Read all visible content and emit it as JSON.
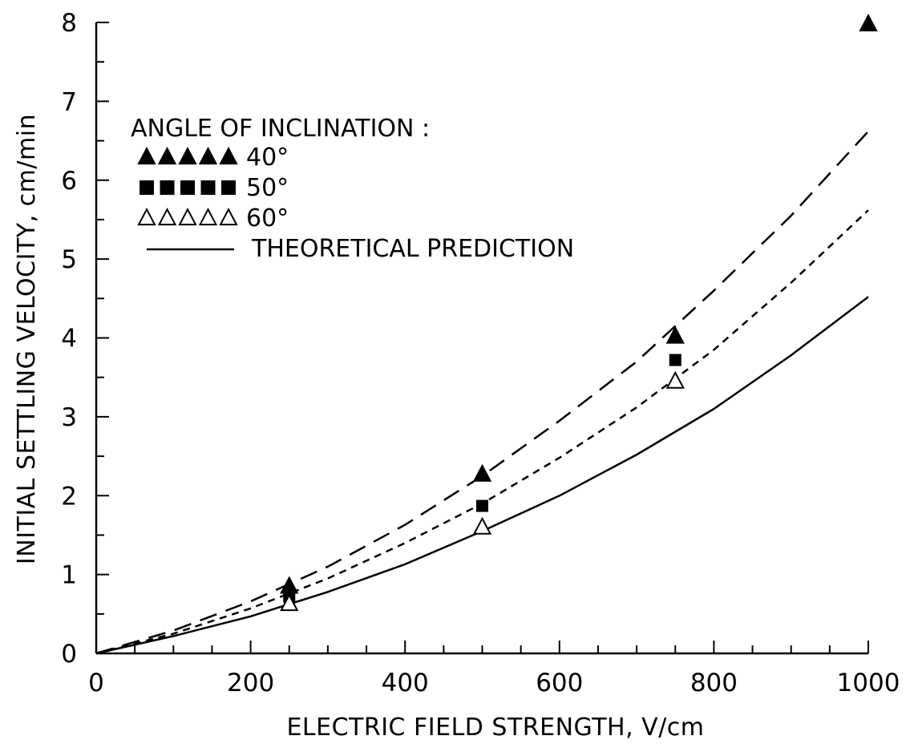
{
  "chart_data": {
    "type": "scatter",
    "xlabel": "ELECTRIC FIELD STRENGTH, V/cm",
    "ylabel": "INITIAL SETTLING VELOCITY, cm/min",
    "xlim": [
      0,
      1000
    ],
    "ylim": [
      0,
      8
    ],
    "x_ticks": [
      "0",
      "200",
      "400",
      "600",
      "800",
      "1000"
    ],
    "y_ticks": [
      "0",
      "1",
      "2",
      "3",
      "4",
      "5",
      "6",
      "7",
      "8"
    ],
    "grid": false,
    "legend_title": "ANGLE OF INCLINATION :",
    "legend_position": "top-left",
    "series": [
      {
        "name": "40°",
        "marker": "filled-triangle",
        "x": [
          250,
          500,
          750,
          1000
        ],
        "y": [
          0.85,
          2.27,
          4.02,
          7.98
        ]
      },
      {
        "name": "50°",
        "marker": "filled-square",
        "x": [
          250,
          500,
          750
        ],
        "y": [
          0.72,
          1.87,
          3.72
        ]
      },
      {
        "name": "60°",
        "marker": "open-triangle",
        "x": [
          250,
          500,
          750
        ],
        "y": [
          0.63,
          1.6,
          3.45
        ]
      }
    ],
    "curves": [
      {
        "style": "long-dash",
        "x": [
          0,
          100,
          200,
          300,
          400,
          500,
          600,
          700,
          800,
          900,
          1000
        ],
        "y": [
          0,
          0.29,
          0.66,
          1.1,
          1.63,
          2.25,
          2.95,
          3.7,
          4.6,
          5.55,
          6.62
        ]
      },
      {
        "style": "short-dash",
        "x": [
          0,
          100,
          200,
          300,
          400,
          500,
          600,
          700,
          800,
          900,
          1000
        ],
        "y": [
          0,
          0.25,
          0.57,
          0.95,
          1.4,
          1.9,
          2.48,
          3.12,
          3.85,
          4.7,
          5.62
        ]
      },
      {
        "name": "THEORETICAL PREDICTION",
        "style": "solid",
        "x": [
          0,
          100,
          200,
          300,
          400,
          500,
          600,
          700,
          800,
          900,
          1000
        ],
        "y": [
          0,
          0.22,
          0.47,
          0.78,
          1.13,
          1.55,
          2.0,
          2.52,
          3.1,
          3.78,
          4.52
        ]
      }
    ]
  }
}
